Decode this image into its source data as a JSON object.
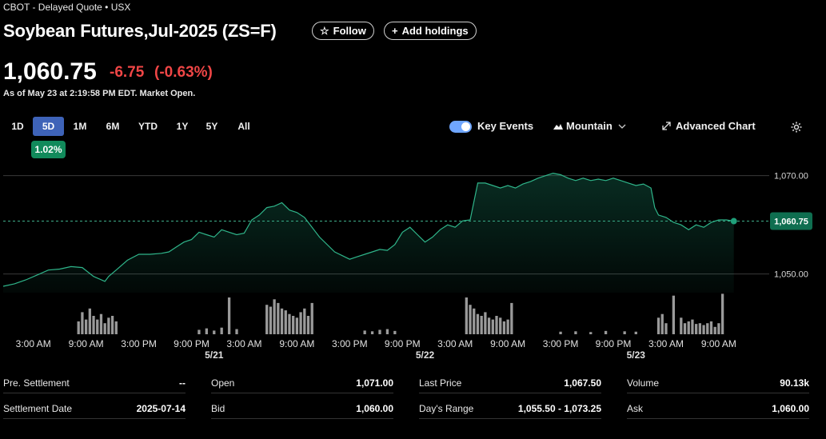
{
  "header": {
    "meta": "CBOT - Delayed Quote • USX",
    "title": "Soybean Futures,Jul-2025 (ZS=F)",
    "follow_label": "Follow",
    "add_holdings_label": "Add holdings"
  },
  "quote": {
    "price": "1,060.75",
    "change": "-6.75",
    "change_pct": "(-0.63%)",
    "as_of": "As of May 23 at 2:19:58 PM EDT. Market Open."
  },
  "ranges": [
    "1D",
    "5D",
    "1M",
    "6M",
    "YTD",
    "1Y",
    "5Y",
    "All"
  ],
  "active_range": "5D",
  "range_performance": "1.02%",
  "controls": {
    "key_events_label": "Key Events",
    "chart_type_label": "Mountain",
    "advanced_chart_label": "Advanced Chart"
  },
  "colors": {
    "accent_green": "#1fa07a",
    "negative_red": "#f04646",
    "active_tab": "#3e63b8"
  },
  "chart_data": {
    "type": "area",
    "title": "Soybean Futures,Jul-2025 (ZS=F) 5D",
    "ylim": [
      1046.2,
      1071.9
    ],
    "ytick_values": [
      1050,
      1070
    ],
    "ytick_labels": [
      "1,050.00",
      "1,070.00"
    ],
    "current_value": 1060.75,
    "current_label": "1,060.75",
    "x_tick_labels": [
      "3:00 AM",
      "9:00 AM",
      "3:00 PM",
      "9:00 PM",
      "3:00 AM",
      "9:00 AM",
      "3:00 PM",
      "9:00 PM",
      "3:00 AM",
      "9:00 AM",
      "3:00 PM",
      "9:00 PM",
      "3:00 AM",
      "9:00 AM"
    ],
    "date_labels": [
      "5/21",
      "5/22",
      "5/23"
    ],
    "price_series": [
      [
        0,
        1047.5
      ],
      [
        3,
        1048.0
      ],
      [
        6,
        1048.8
      ],
      [
        9,
        1049.8
      ],
      [
        12,
        1050.8
      ],
      [
        15,
        1051.0
      ],
      [
        18,
        1051.5
      ],
      [
        21,
        1051.3
      ],
      [
        24,
        1049.5
      ],
      [
        27,
        1048.5
      ],
      [
        28,
        1049.5
      ],
      [
        30,
        1050.8
      ],
      [
        33,
        1052.8
      ],
      [
        36,
        1054.0
      ],
      [
        39,
        1054.0
      ],
      [
        42,
        1054.2
      ],
      [
        44,
        1054.5
      ],
      [
        46,
        1055.5
      ],
      [
        48,
        1056.5
      ],
      [
        50,
        1057.0
      ],
      [
        52,
        1058.5
      ],
      [
        54,
        1058.0
      ],
      [
        56,
        1057.5
      ],
      [
        58,
        1059.0
      ],
      [
        60,
        1058.5
      ],
      [
        62,
        1058.0
      ],
      [
        64,
        1058.3
      ],
      [
        66,
        1061.0
      ],
      [
        68,
        1062.0
      ],
      [
        70,
        1063.5
      ],
      [
        72,
        1063.8
      ],
      [
        74,
        1064.5
      ],
      [
        76,
        1063.0
      ],
      [
        78,
        1062.5
      ],
      [
        80,
        1061.5
      ],
      [
        84,
        1057.5
      ],
      [
        88,
        1054.5
      ],
      [
        92,
        1053.0
      ],
      [
        94,
        1053.5
      ],
      [
        96,
        1054.0
      ],
      [
        98,
        1054.5
      ],
      [
        100,
        1055.0
      ],
      [
        102,
        1054.8
      ],
      [
        104,
        1056.0
      ],
      [
        106,
        1058.5
      ],
      [
        108,
        1059.5
      ],
      [
        110,
        1058.0
      ],
      [
        112,
        1056.5
      ],
      [
        114,
        1057.5
      ],
      [
        116,
        1059.0
      ],
      [
        118,
        1060.0
      ],
      [
        120,
        1059.5
      ],
      [
        122,
        1060.8
      ],
      [
        124,
        1061.0
      ],
      [
        126,
        1068.5
      ],
      [
        128,
        1068.5
      ],
      [
        130,
        1068.0
      ],
      [
        132,
        1067.5
      ],
      [
        134,
        1068.0
      ],
      [
        136,
        1067.5
      ],
      [
        138,
        1068.3
      ],
      [
        140,
        1068.8
      ],
      [
        142,
        1069.5
      ],
      [
        144,
        1070.0
      ],
      [
        146,
        1070.5
      ],
      [
        148,
        1070.2
      ],
      [
        150,
        1069.5
      ],
      [
        152,
        1069.0
      ],
      [
        154,
        1069.5
      ],
      [
        156,
        1069.0
      ],
      [
        158,
        1069.3
      ],
      [
        160,
        1069.0
      ],
      [
        162,
        1069.5
      ],
      [
        164,
        1069.0
      ],
      [
        166,
        1068.5
      ],
      [
        168,
        1068.0
      ],
      [
        170,
        1068.3
      ],
      [
        172,
        1067.5
      ],
      [
        173,
        1063.5
      ],
      [
        174,
        1062.0
      ],
      [
        176,
        1061.5
      ],
      [
        178,
        1060.5
      ],
      [
        180,
        1060.0
      ],
      [
        182,
        1059.0
      ],
      [
        184,
        1060.0
      ],
      [
        186,
        1059.5
      ],
      [
        188,
        1060.5
      ],
      [
        190,
        1061.0
      ],
      [
        192,
        1061.0
      ],
      [
        194,
        1060.75
      ]
    ],
    "volume_series": [
      [
        20,
        0.35
      ],
      [
        21,
        0.6
      ],
      [
        22,
        0.4
      ],
      [
        23,
        0.7
      ],
      [
        24,
        0.5
      ],
      [
        25,
        0.4
      ],
      [
        26,
        0.55
      ],
      [
        27,
        0.3
      ],
      [
        28,
        0.45
      ],
      [
        29,
        0.5
      ],
      [
        30,
        0.35
      ],
      [
        52,
        0.12
      ],
      [
        54,
        0.16
      ],
      [
        56,
        0.1
      ],
      [
        58,
        0.18
      ],
      [
        60,
        1.0
      ],
      [
        62,
        0.14
      ],
      [
        70,
        0.8
      ],
      [
        71,
        0.75
      ],
      [
        72,
        0.95
      ],
      [
        73,
        0.85
      ],
      [
        74,
        0.7
      ],
      [
        75,
        0.65
      ],
      [
        76,
        0.55
      ],
      [
        77,
        0.5
      ],
      [
        78,
        0.45
      ],
      [
        79,
        0.6
      ],
      [
        80,
        0.7
      ],
      [
        81,
        0.5
      ],
      [
        82,
        0.85
      ],
      [
        96,
        0.1
      ],
      [
        98,
        0.08
      ],
      [
        100,
        0.12
      ],
      [
        102,
        0.14
      ],
      [
        104,
        0.09
      ],
      [
        123,
        1.0
      ],
      [
        124,
        0.8
      ],
      [
        125,
        0.7
      ],
      [
        126,
        0.55
      ],
      [
        127,
        0.5
      ],
      [
        128,
        0.6
      ],
      [
        129,
        0.45
      ],
      [
        130,
        0.4
      ],
      [
        131,
        0.5
      ],
      [
        132,
        0.45
      ],
      [
        133,
        0.35
      ],
      [
        134,
        0.4
      ],
      [
        135,
        0.85
      ],
      [
        148,
        0.07
      ],
      [
        152,
        0.08
      ],
      [
        156,
        0.06
      ],
      [
        160,
        0.09
      ],
      [
        165,
        0.08
      ],
      [
        168,
        0.07
      ],
      [
        174,
        0.45
      ],
      [
        175,
        0.55
      ],
      [
        176,
        0.3
      ],
      [
        178,
        1.05
      ],
      [
        180,
        0.45
      ],
      [
        181,
        0.3
      ],
      [
        182,
        0.35
      ],
      [
        183,
        0.4
      ],
      [
        184,
        0.28
      ],
      [
        185,
        0.3
      ],
      [
        186,
        0.25
      ],
      [
        187,
        0.3
      ],
      [
        188,
        0.35
      ],
      [
        189,
        0.2
      ],
      [
        190,
        0.3
      ],
      [
        191,
        1.1
      ]
    ],
    "x_ticks_at": [
      8,
      22,
      36,
      50,
      64,
      78,
      92,
      106,
      120,
      134,
      148,
      162,
      176,
      190
    ],
    "date_ticks_at": [
      56,
      112,
      168
    ],
    "x_domain": [
      0,
      200
    ]
  },
  "stats": {
    "rows": [
      [
        {
          "label": "Pre. Settlement",
          "value": "--"
        },
        {
          "label": "Open",
          "value": "1,071.00"
        },
        {
          "label": "Last Price",
          "value": "1,067.50"
        },
        {
          "label": "Volume",
          "value": "90.13k"
        }
      ],
      [
        {
          "label": "Settlement Date",
          "value": "2025-07-14"
        },
        {
          "label": "Bid",
          "value": "1,060.00"
        },
        {
          "label": "Day's Range",
          "value": "1,055.50 - 1,073.25"
        },
        {
          "label": "Ask",
          "value": "1,060.00"
        }
      ]
    ]
  }
}
